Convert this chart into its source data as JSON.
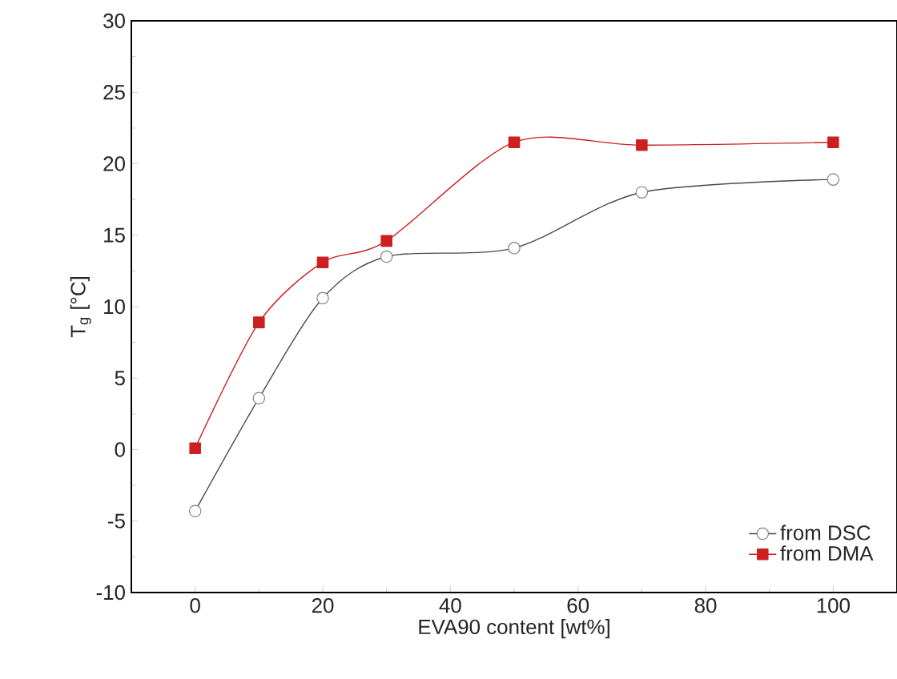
{
  "chart_data": {
    "type": "line",
    "xlabel": "EVA90 content [wt%]",
    "ylabel": "T$_{g}$ [°C]",
    "xlim": [
      -10,
      110
    ],
    "xticks": [
      0,
      20,
      40,
      60,
      80,
      100
    ],
    "ylim": [
      -10,
      30
    ],
    "yticks": [
      -10,
      -5,
      0,
      5,
      10,
      15,
      20,
      25,
      30
    ],
    "x": [
      0,
      10,
      20,
      30,
      50,
      70,
      100
    ],
    "grid": false,
    "legend": "bottom right",
    "series": [
      {
        "name": "from DSC",
        "color": "#4a4a4a",
        "marker": "circle",
        "values": [
          -4.3,
          3.6,
          10.6,
          13.5,
          14.1,
          18.0,
          18.9
        ]
      },
      {
        "name": "from DMA",
        "color": "#cc1f1f",
        "marker": "square",
        "values": [
          0.1,
          8.9,
          13.1,
          14.6,
          21.5,
          21.3,
          21.5
        ]
      }
    ]
  }
}
